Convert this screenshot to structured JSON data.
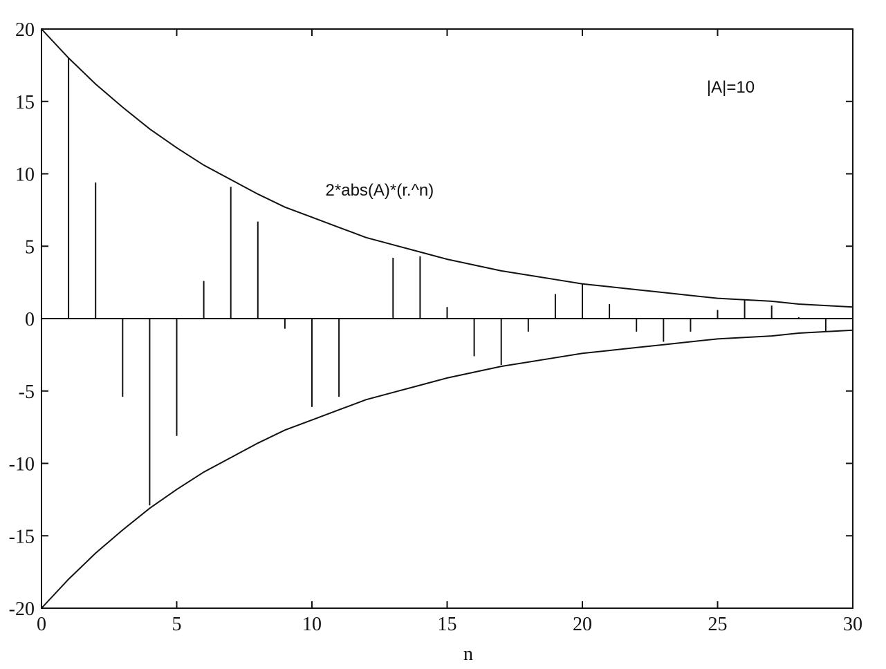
{
  "chart_data": {
    "type": "stem",
    "title": "",
    "xlabel": "n",
    "ylabel": "",
    "xlim": [
      0,
      30
    ],
    "ylim": [
      -20,
      20
    ],
    "xticks": [
      0,
      5,
      10,
      15,
      20,
      25,
      30
    ],
    "yticks": [
      20,
      15,
      10,
      5,
      0,
      -5,
      -10,
      -15,
      -20
    ],
    "x_tick_labels": [
      "0",
      "5",
      "10",
      "15",
      "20",
      "25",
      "30"
    ],
    "y_tick_labels": [
      "20",
      "15",
      "10",
      "5",
      "0",
      "-5",
      "-10",
      "-15",
      "-20"
    ],
    "stems": {
      "n": [
        0,
        1,
        2,
        3,
        4,
        5,
        6,
        7,
        8,
        9,
        10,
        11,
        12,
        13,
        14,
        15,
        16,
        17,
        18,
        19,
        20,
        21,
        22,
        23,
        24,
        25,
        26,
        27,
        28,
        29,
        30
      ],
      "values": [
        20.0,
        18.0,
        9.4,
        -5.4,
        -12.9,
        -8.1,
        2.6,
        9.1,
        6.7,
        -0.7,
        -6.1,
        -5.4,
        0.0,
        4.2,
        4.3,
        0.8,
        -2.6,
        -3.2,
        -0.9,
        1.7,
        2.4,
        1.0,
        -0.9,
        -1.6,
        -0.9,
        0.6,
        1.3,
        0.9,
        0.1,
        -0.9,
        -0.8
      ]
    },
    "envelope": {
      "upper_label": "2*abs(A)*(r.^n)",
      "n": [
        0,
        1,
        2,
        3,
        4,
        5,
        6,
        7,
        8,
        9,
        10,
        11,
        12,
        13,
        14,
        15,
        16,
        17,
        18,
        19,
        20,
        21,
        22,
        23,
        24,
        25,
        26,
        27,
        28,
        29,
        30
      ],
      "upper": [
        20.0,
        18.0,
        16.2,
        14.6,
        13.1,
        11.8,
        10.6,
        9.6,
        8.6,
        7.7,
        7.0,
        6.3,
        5.6,
        5.1,
        4.6,
        4.1,
        3.7,
        3.3,
        3.0,
        2.7,
        2.4,
        2.2,
        2.0,
        1.8,
        1.6,
        1.4,
        1.3,
        1.2,
        1.0,
        0.9,
        0.8
      ],
      "lower": [
        -20.0,
        -18.0,
        -16.2,
        -14.6,
        -13.1,
        -11.8,
        -10.6,
        -9.6,
        -8.6,
        -7.7,
        -7.0,
        -6.3,
        -5.6,
        -5.1,
        -4.6,
        -4.1,
        -3.7,
        -3.3,
        -3.0,
        -2.7,
        -2.4,
        -2.2,
        -2.0,
        -1.8,
        -1.6,
        -1.4,
        -1.3,
        -1.2,
        -1.0,
        -0.9,
        -0.8
      ]
    },
    "annotations": [
      {
        "text": "|A|=10",
        "at": [
          24.6,
          15.6
        ]
      },
      {
        "text": "2*abs(A)*(r.^n)",
        "at": [
          10.5,
          8.5
        ]
      }
    ],
    "grid": false,
    "colors": {
      "line": "#111111",
      "background": "#ffffff"
    }
  }
}
